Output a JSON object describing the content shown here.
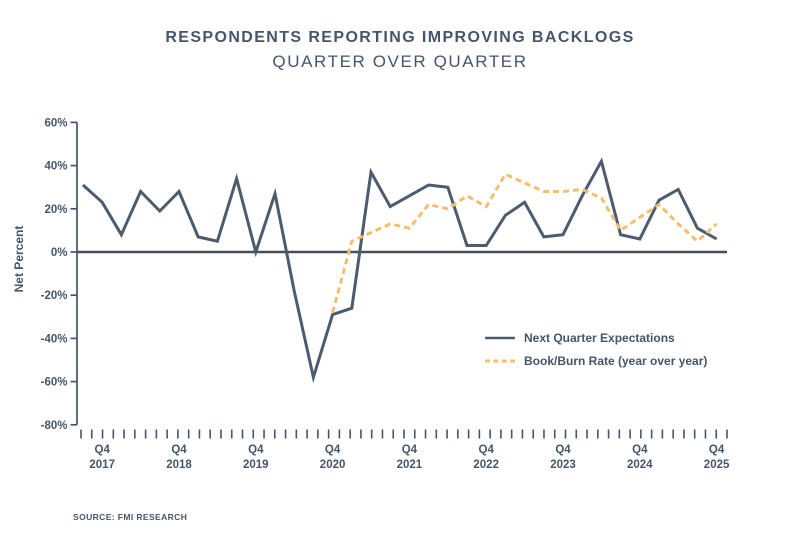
{
  "source_note": "SOURCE: FMI RESEARCH",
  "colors": {
    "text": "#465569",
    "expectations_line": "#4c5b6d",
    "bookburn_line": "#f3bf6e",
    "zero_line": "#454f5c"
  },
  "chart_data": {
    "type": "line",
    "title": "RESPONDENTS REPORTING IMPROVING BACKLOGS",
    "subtitle": "QUARTER OVER QUARTER",
    "xlabel": "",
    "ylabel": "Net Percent",
    "ylim": [
      -80,
      60
    ],
    "ytick_step": 20,
    "ytick_labels": [
      "60%",
      "40%",
      "20%",
      "0%",
      "-20%",
      "-40%",
      "-60%",
      "-80%"
    ],
    "grid": false,
    "zero_line": true,
    "legend_position": "inside right",
    "x": [
      "Q3 2017",
      "Q4 2017",
      "Q1 2018",
      "Q2 2018",
      "Q3 2018",
      "Q4 2018",
      "Q1 2019",
      "Q2 2019",
      "Q3 2019",
      "Q4 2019",
      "Q1 2020",
      "Q2 2020",
      "Q3 2020",
      "Q4 2020",
      "Q1 2021",
      "Q2 2021",
      "Q3 2021",
      "Q4 2021",
      "Q1 2022",
      "Q2 2022",
      "Q3 2022",
      "Q4 2022",
      "Q1 2023",
      "Q2 2023",
      "Q3 2023",
      "Q4 2023",
      "Q1 2024",
      "Q2 2024",
      "Q3 2024",
      "Q4 2024",
      "Q1 2025",
      "Q2 2025",
      "Q3 2025",
      "Q4 2025"
    ],
    "xtick_labels": [
      {
        "top": "Q4",
        "bottom": "2017"
      },
      {
        "top": "Q4",
        "bottom": "2018"
      },
      {
        "top": "Q4",
        "bottom": "2019"
      },
      {
        "top": "Q4",
        "bottom": "2020"
      },
      {
        "top": "Q4",
        "bottom": "2021"
      },
      {
        "top": "Q4",
        "bottom": "2022"
      },
      {
        "top": "Q4",
        "bottom": "2023"
      },
      {
        "top": "Q4",
        "bottom": "2024"
      },
      {
        "top": "Q4",
        "bottom": "2025"
      }
    ],
    "series": [
      {
        "name": "Next Quarter Expectations",
        "style": "solid",
        "color": "#4c5b6d",
        "values": [
          31,
          23,
          8,
          28,
          19,
          28,
          7,
          5,
          34,
          0,
          27,
          -18,
          -58,
          -29,
          -26,
          37,
          21,
          26,
          31,
          30,
          3,
          3,
          17,
          23,
          7,
          8,
          26,
          42,
          8,
          6,
          24,
          29,
          11,
          6
        ]
      },
      {
        "name": "Book/Burn Rate (year over year)",
        "style": "dashed",
        "color": "#f3bf6e",
        "values": [
          null,
          null,
          null,
          null,
          null,
          null,
          null,
          null,
          null,
          null,
          null,
          null,
          null,
          -28,
          5,
          9,
          13,
          11,
          22,
          20,
          26,
          21,
          36,
          32,
          28,
          28,
          29,
          25,
          10,
          16,
          22,
          13,
          5,
          13
        ]
      }
    ]
  }
}
